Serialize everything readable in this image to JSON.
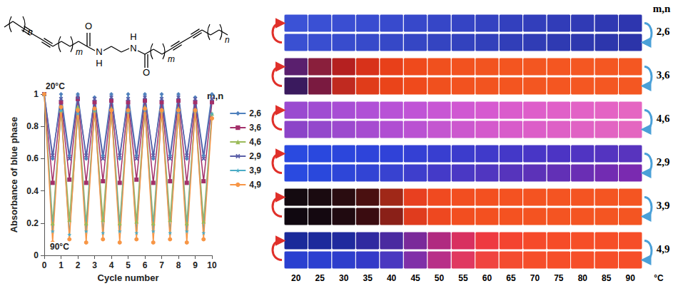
{
  "chart_data": [
    {
      "type": "line",
      "x_label": "Cycle number",
      "y_label": "Absorbance of blue phase",
      "annotations": [
        "20°C",
        "90°C"
      ],
      "legend_title": "m,n",
      "legend": "right",
      "grid": false,
      "xlim": [
        0,
        10
      ],
      "xticks": [
        0,
        1,
        2,
        3,
        4,
        5,
        6,
        7,
        8,
        9,
        10
      ],
      "ylim": [
        0,
        1
      ],
      "yticks": [
        0,
        0.2,
        0.4,
        0.6,
        0.8,
        1
      ],
      "x": [
        0,
        0.5,
        1,
        1.5,
        2,
        2.5,
        3,
        3.5,
        4,
        4.5,
        5,
        5.5,
        6,
        6.5,
        7,
        7.5,
        8,
        8.5,
        9,
        9.5,
        10
      ],
      "series": [
        {
          "name": "2,6",
          "color": "#4F81BD",
          "marker": "diamond",
          "line_style": "solid",
          "values": [
            1,
            0.6,
            1,
            0.62,
            1,
            0.6,
            0.98,
            0.62,
            1,
            0.6,
            1,
            0.62,
            1,
            0.6,
            1,
            0.62,
            1,
            0.6,
            0.98,
            0.62,
            1
          ]
        },
        {
          "name": "3,6",
          "color": "#A3306A",
          "marker": "square",
          "line_style": "solid",
          "values": [
            1,
            0.45,
            0.95,
            0.47,
            0.97,
            0.45,
            0.95,
            0.46,
            0.96,
            0.45,
            0.95,
            0.47,
            0.96,
            0.45,
            0.95,
            0.46,
            0.96,
            0.45,
            0.95,
            0.46,
            0.95
          ]
        },
        {
          "name": "4,6",
          "color": "#9BBB59",
          "marker": "triangle",
          "line_style": "solid",
          "values": [
            1,
            0.2,
            0.9,
            0.22,
            0.92,
            0.2,
            0.9,
            0.22,
            0.91,
            0.2,
            0.9,
            0.21,
            0.92,
            0.2,
            0.9,
            0.22,
            0.91,
            0.2,
            0.9,
            0.21,
            0.88
          ]
        },
        {
          "name": "2,9",
          "color": "#5B5FA8",
          "marker": "cross",
          "line_style": "solid",
          "values": [
            1,
            0.62,
            0.97,
            0.6,
            0.98,
            0.62,
            0.97,
            0.6,
            0.98,
            0.62,
            0.97,
            0.6,
            0.98,
            0.62,
            0.97,
            0.6,
            0.98,
            0.62,
            0.97,
            0.6,
            0.97
          ]
        },
        {
          "name": "3,9",
          "color": "#4BACC6",
          "marker": "star",
          "line_style": "solid",
          "values": [
            1,
            0.15,
            0.9,
            0.13,
            0.88,
            0.15,
            0.9,
            0.14,
            0.9,
            0.15,
            0.89,
            0.14,
            0.9,
            0.15,
            0.9,
            0.14,
            0.89,
            0.15,
            0.9,
            0.14,
            0.88
          ]
        },
        {
          "name": "4,9",
          "color": "#F79646",
          "marker": "circle",
          "line_style": "solid",
          "values": [
            1,
            0.08,
            0.92,
            0.1,
            0.9,
            0.08,
            0.91,
            0.1,
            0.9,
            0.08,
            0.9,
            0.1,
            0.91,
            0.08,
            0.9,
            0.1,
            0.9,
            0.08,
            0.9,
            0.1,
            0.85
          ]
        }
      ]
    },
    {
      "type": "swatch_grid",
      "columns": [
        20,
        25,
        30,
        35,
        40,
        45,
        50,
        55,
        60,
        65,
        70,
        75,
        80,
        85,
        90
      ],
      "column_unit": "°C",
      "row_title": "m,n",
      "samples": [
        {
          "name": "2,6",
          "colors": [
            [
              "#3b52d6",
              "#3a50d4",
              "#3a4ed2",
              "#394cd0",
              "#384acd",
              "#3748ca",
              "#3646c7",
              "#3544c4",
              "#3442c1",
              "#3340be",
              "#323ebb",
              "#313cb8",
              "#303ab5",
              "#2f38b2",
              "#2e36af"
            ],
            [
              "#3a50d2",
              "#394ed0",
              "#384ccd",
              "#374aca",
              "#3648c7",
              "#3546c4",
              "#3444c1",
              "#3342be",
              "#3240bb",
              "#313eb8",
              "#303cb5",
              "#2f3ab2",
              "#2e38af",
              "#2d36ac",
              "#2c34a9"
            ]
          ]
        },
        {
          "name": "3,6",
          "colors": [
            [
              "#5a1f6e",
              "#8a1f3c",
              "#b52020",
              "#d8321a",
              "#e8401a",
              "#ef4a1c",
              "#f0501e",
              "#f2521f",
              "#f25420",
              "#f35520",
              "#f35621",
              "#f45621",
              "#f45722",
              "#f45722",
              "#f45722"
            ],
            [
              "#3a1a5e",
              "#7a1a40",
              "#c02a20",
              "#e03c1a",
              "#ea441a",
              "#ef4a1c",
              "#f0501e",
              "#f2521f",
              "#f25420",
              "#f35520",
              "#f35621",
              "#f45621",
              "#f45722",
              "#f45722",
              "#f45722"
            ]
          ]
        },
        {
          "name": "4,6",
          "colors": [
            [
              "#9a4ad0",
              "#a04cd2",
              "#a84ed4",
              "#b050d6",
              "#b852d6",
              "#c054d6",
              "#c856d4",
              "#d058d2",
              "#d65ad0",
              "#da5ccc",
              "#de5eca",
              "#e060c8",
              "#e262c6",
              "#e464c4",
              "#e566c2"
            ],
            [
              "#8c44c8",
              "#9448cc",
              "#9c4ace",
              "#a64cd0",
              "#b04ed2",
              "#ba52d2",
              "#c456d0",
              "#cc58ce",
              "#d45acc",
              "#d85cca",
              "#dc5ec8",
              "#de60c6",
              "#e062c4",
              "#e264c2",
              "#e466c0"
            ]
          ]
        },
        {
          "name": "2,9",
          "colors": [
            [
              "#2a4ae0",
              "#2a48de",
              "#2c46dc",
              "#2e44da",
              "#3042d8",
              "#3440d4",
              "#383ed0",
              "#3c3ccc",
              "#403aca",
              "#4438c8",
              "#4836c6",
              "#4c34c4",
              "#5034c2",
              "#5434c0",
              "#5834be"
            ],
            [
              "#2a4ae0",
              "#2a48dc",
              "#2e46d8",
              "#3244d4",
              "#3842d0",
              "#3e3ecc",
              "#443ac8",
              "#4a38c4",
              "#5036c0",
              "#5634bc",
              "#5c32b8",
              "#6230b6",
              "#6a2eb4",
              "#722cb2",
              "#7a2ab0"
            ]
          ]
        },
        {
          "name": "3,9",
          "colors": [
            [
              "#140a10",
              "#1a0a10",
              "#2a0c10",
              "#4a1010",
              "#a02818",
              "#e84020",
              "#f04a20",
              "#f24e20",
              "#f35020",
              "#f45221",
              "#f45321",
              "#f45422",
              "#f45422",
              "#f45522",
              "#f45522"
            ],
            [
              "#100810",
              "#140810",
              "#200a10",
              "#3a0c10",
              "#8a2018",
              "#e03c1e",
              "#ee4820",
              "#f24e20",
              "#f35020",
              "#f45221",
              "#f45321",
              "#f45422",
              "#f45422",
              "#f45522",
              "#f45522"
            ]
          ]
        },
        {
          "name": "4,9",
          "colors": [
            [
              "#1a2a9a",
              "#1c2a9c",
              "#202a9e",
              "#302aa0",
              "#4a2aa0",
              "#7a2a9a",
              "#b02a80",
              "#d83060",
              "#ee3a40",
              "#f44430",
              "#f64a2a",
              "#f64c28",
              "#f64e28",
              "#f64e28",
              "#f64e28"
            ],
            [
              "#2a40d0",
              "#2c40d0",
              "#2e3ecc",
              "#343ac8",
              "#4a38c0",
              "#8030a8",
              "#b83088",
              "#e03860",
              "#f04440",
              "#f44c30",
              "#f64e2a",
              "#f64e28",
              "#f64e28",
              "#f64e28",
              "#f64e28"
            ]
          ]
        }
      ]
    }
  ],
  "structure": {
    "oxygen": "O",
    "nitrogen": "N",
    "hydrogen": "H",
    "inner_repeat": "m",
    "outer_repeat": "n"
  }
}
